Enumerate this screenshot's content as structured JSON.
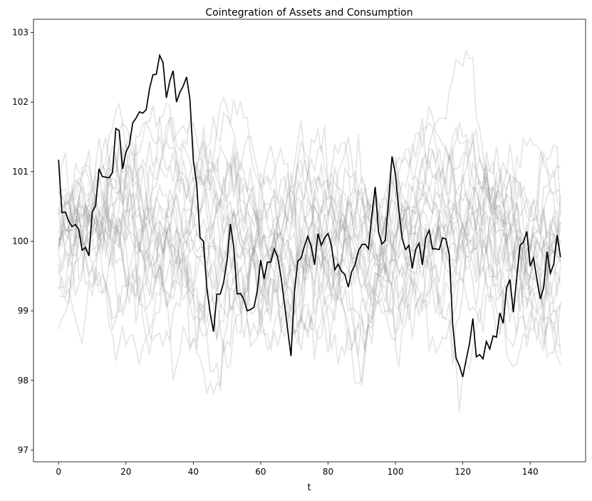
{
  "chart_data": {
    "type": "line",
    "title": "Cointegration of Assets and Consumption",
    "xlabel": "t",
    "ylabel": "",
    "xlim": [
      -7.45,
      156.45
    ],
    "ylim": [
      96.83,
      103.19
    ],
    "xticks": [
      0,
      20,
      40,
      60,
      80,
      100,
      120,
      140
    ],
    "yticks": [
      97,
      98,
      99,
      100,
      101,
      102,
      103
    ],
    "grid": false,
    "legend": "none",
    "highlight_color": "#000000",
    "background_color": "#808080",
    "background_alpha": 0.2,
    "background_series_count": 25,
    "series": [
      {
        "values": [
          101.17,
          100.41,
          100.42,
          100.29,
          100.21,
          100.24,
          100.17,
          99.87,
          99.91,
          99.79,
          100.42,
          100.51,
          101.04,
          100.93,
          100.92,
          100.91,
          100.99,
          101.62,
          101.59,
          101.04,
          101.28,
          101.38,
          101.7,
          101.77,
          101.86,
          101.84,
          101.89,
          102.19,
          102.39,
          102.4,
          102.67,
          102.57,
          102.06,
          102.3,
          102.45,
          102.0,
          102.14,
          102.23,
          102.36,
          102.04,
          101.16,
          100.82,
          100.05,
          100.0,
          99.33,
          98.97,
          98.7,
          99.24,
          99.24,
          99.41,
          99.72,
          100.25,
          99.92,
          99.24,
          99.25,
          99.16,
          99.0,
          99.02,
          99.05,
          99.29,
          99.73,
          99.46,
          99.7,
          99.7,
          99.89,
          99.78,
          99.5,
          99.13,
          98.73,
          98.35,
          99.26,
          99.71,
          99.76,
          99.93,
          100.07,
          99.93,
          99.66,
          100.11,
          99.94,
          100.05,
          100.11,
          99.94,
          99.59,
          99.67,
          99.57,
          99.52,
          99.34,
          99.56,
          99.66,
          99.86,
          99.95,
          99.96,
          99.89,
          100.38,
          100.78,
          100.13,
          99.96,
          100.01,
          100.6,
          101.22,
          100.96,
          100.45,
          100.04,
          99.88,
          99.94,
          99.61,
          99.88,
          99.97,
          99.66,
          100.05,
          100.16,
          99.89,
          99.89,
          99.88,
          100.05,
          100.03,
          99.8,
          98.8,
          98.32,
          98.21,
          98.05,
          98.3,
          98.53,
          98.89,
          98.34,
          98.37,
          98.31,
          98.56,
          98.45,
          98.64,
          98.62,
          98.97,
          98.82,
          99.33,
          99.45,
          98.98,
          99.47,
          99.94,
          99.99,
          100.14,
          99.64,
          99.76,
          99.45,
          99.17,
          99.33,
          99.85,
          99.54,
          99.67,
          100.09,
          99.77
        ]
      }
    ]
  }
}
